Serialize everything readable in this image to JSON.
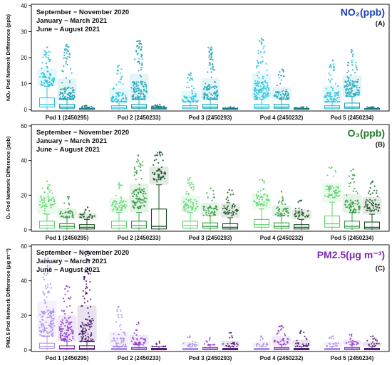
{
  "legend_lines": [
    "September − November 2020",
    "January − March 2021",
    "June − August 2021"
  ],
  "colors": {
    "panel_A": [
      "#29c4dc",
      "#1ba6b8",
      "#147a85"
    ],
    "panel_B": [
      "#58d66a",
      "#2c9b3c",
      "#164f22"
    ],
    "panel_C": [
      "#a88ce8",
      "#8a3cc8",
      "#4a1876"
    ],
    "title_A": "#1a3fc2",
    "title_B": "#1f7a2a",
    "title_C": "#7d2ab0"
  },
  "chart_data": [
    {
      "type": "box",
      "panel_letter": "(A)",
      "title": "NO₂(ppb)",
      "ylabel": "NO₂ Pod Network Difference (ppb)",
      "ylim": [
        0,
        40
      ],
      "yticks": [
        0,
        10,
        20,
        30,
        40
      ],
      "categories": [
        "Pod 1 (2450295)",
        "Pod 2 (2450233)",
        "Pod 3 (2450293)",
        "Pod 4 (2450232)",
        "Pod 5 (2450234)"
      ],
      "series": [
        {
          "name": "September − November 2020",
          "boxes": [
            {
              "q1": 1.0,
              "median": 2.0,
              "q3": 4.5,
              "whisker_low": 0,
              "whisker_high": 9,
              "outlier_max": 24,
              "outlier_center": 11.5
            },
            {
              "q1": 0.3,
              "median": 0.8,
              "q3": 1.5,
              "whisker_low": 0,
              "whisker_high": 3,
              "outlier_max": 17,
              "outlier_center": 4
            },
            {
              "q1": 0.3,
              "median": 0.8,
              "q3": 1.5,
              "whisker_low": 0,
              "whisker_high": 3,
              "outlier_max": 14,
              "outlier_center": 3.5
            },
            {
              "q1": 0.5,
              "median": 1.0,
              "q3": 2.0,
              "whisker_low": 0,
              "whisker_high": 4,
              "outlier_max": 27.5,
              "outlier_center": 7
            },
            {
              "q1": 0.3,
              "median": 0.8,
              "q3": 1.5,
              "whisker_low": 0,
              "whisker_high": 3,
              "outlier_max": 19,
              "outlier_center": 4
            }
          ]
        },
        {
          "name": "January − March 2021",
          "boxes": [
            {
              "q1": 0.5,
              "median": 1.0,
              "q3": 2.0,
              "whisker_low": 0,
              "whisker_high": 4,
              "outlier_max": 25,
              "outlier_center": 5
            },
            {
              "q1": 0.5,
              "median": 1.0,
              "q3": 2.0,
              "whisker_low": 0,
              "whisker_high": 4,
              "outlier_max": 26.5,
              "outlier_center": 7
            },
            {
              "q1": 0.5,
              "median": 1.0,
              "q3": 2.0,
              "whisker_low": 0,
              "whisker_high": 4,
              "outlier_max": 24,
              "outlier_center": 5.5
            },
            {
              "q1": 0.5,
              "median": 1.0,
              "q3": 2.0,
              "whisker_low": 0,
              "whisker_high": 4,
              "outlier_max": 15.5,
              "outlier_center": 5
            },
            {
              "q1": 0.5,
              "median": 1.0,
              "q3": 2.5,
              "whisker_low": 0,
              "whisker_high": 5,
              "outlier_max": 23,
              "outlier_center": 8
            }
          ]
        },
        {
          "name": "June − August 2021",
          "boxes": [
            {
              "q1": 0.1,
              "median": 0.2,
              "q3": 0.5,
              "whisker_low": 0,
              "whisker_high": 0.8,
              "outlier_max": 1.5,
              "outlier_center": 0.8
            },
            {
              "q1": 0.2,
              "median": 0.5,
              "q3": 0.8,
              "whisker_low": 0,
              "whisker_high": 1.2,
              "outlier_max": 2,
              "outlier_center": 1.2
            },
            {
              "q1": 0.1,
              "median": 0.2,
              "q3": 0.4,
              "whisker_low": 0,
              "whisker_high": 0.6,
              "outlier_max": 1.0,
              "outlier_center": 0.6
            },
            {
              "q1": 0.1,
              "median": 0.2,
              "q3": 0.4,
              "whisker_low": 0,
              "whisker_high": 0.6,
              "outlier_max": 1.0,
              "outlier_center": 0.6
            },
            {
              "q1": 0.1,
              "median": 0.2,
              "q3": 0.4,
              "whisker_low": 0,
              "whisker_high": 0.6,
              "outlier_max": 1.0,
              "outlier_center": 0.6
            }
          ]
        }
      ]
    },
    {
      "type": "box",
      "panel_letter": "(B)",
      "title": "O₃(ppb)",
      "ylabel": "O₃ Pod Network Difference (ppb)",
      "ylim": [
        0,
        60
      ],
      "yticks": [
        0,
        20,
        40,
        60
      ],
      "categories": [
        "Pod 1 (2450295)",
        "Pod 2 (2450233)",
        "Pod 3 (2450293)",
        "Pod 4 (2450232)",
        "Pod 5 (2450234)"
      ],
      "series": [
        {
          "name": "September − November 2020",
          "boxes": [
            {
              "q1": 1.0,
              "median": 2.5,
              "q3": 5.0,
              "whisker_low": 0,
              "whisker_high": 9,
              "outlier_max": 28,
              "outlier_center": 16
            },
            {
              "q1": 1.0,
              "median": 2.5,
              "q3": 5.0,
              "whisker_low": 0,
              "whisker_high": 10,
              "outlier_max": 27,
              "outlier_center": 14
            },
            {
              "q1": 1.0,
              "median": 2.5,
              "q3": 5.0,
              "whisker_low": 0,
              "whisker_high": 10,
              "outlier_max": 30,
              "outlier_center": 14
            },
            {
              "q1": 1.5,
              "median": 3.0,
              "q3": 6.0,
              "whisker_low": 0,
              "whisker_high": 12,
              "outlier_max": 29,
              "outlier_center": 17
            },
            {
              "q1": 1.5,
              "median": 3.5,
              "q3": 8.0,
              "whisker_low": 0,
              "whisker_high": 16,
              "outlier_max": 36,
              "outlier_center": 22
            }
          ]
        },
        {
          "name": "January − March 2021",
          "boxes": [
            {
              "q1": 1.0,
              "median": 2.0,
              "q3": 3.5,
              "whisker_low": 0,
              "whisker_high": 7,
              "outlier_max": 19,
              "outlier_center": 9
            },
            {
              "q1": 1.0,
              "median": 2.5,
              "q3": 5.0,
              "whisker_low": 0,
              "whisker_high": 10,
              "outlier_max": 43,
              "outlier_center": 18
            },
            {
              "q1": 1.0,
              "median": 2.0,
              "q3": 4.0,
              "whisker_low": 0,
              "whisker_high": 8,
              "outlier_max": 24,
              "outlier_center": 11
            },
            {
              "q1": 1.0,
              "median": 2.0,
              "q3": 4.0,
              "whisker_low": 0,
              "whisker_high": 8,
              "outlier_max": 22,
              "outlier_center": 10
            },
            {
              "q1": 1.0,
              "median": 2.0,
              "q3": 5.0,
              "whisker_low": 0,
              "whisker_high": 10,
              "outlier_max": 35,
              "outlier_center": 13
            }
          ]
        },
        {
          "name": "June − August 2021",
          "boxes": [
            {
              "q1": 0.5,
              "median": 1.5,
              "q3": 3.0,
              "whisker_low": 0,
              "whisker_high": 6,
              "outlier_max": 13,
              "outlier_center": 8
            },
            {
              "q1": 0.5,
              "median": 2.0,
              "q3": 12.0,
              "whisker_low": 0,
              "whisker_high": 26,
              "outlier_max": 45,
              "outlier_center": 32
            },
            {
              "q1": 0.5,
              "median": 1.5,
              "q3": 3.5,
              "whisker_low": 0,
              "whisker_high": 7,
              "outlier_max": 23,
              "outlier_center": 11
            },
            {
              "q1": 0.5,
              "median": 1.5,
              "q3": 3.0,
              "whisker_low": 0,
              "whisker_high": 6,
              "outlier_max": 17,
              "outlier_center": 9
            },
            {
              "q1": 0.5,
              "median": 1.5,
              "q3": 4.5,
              "whisker_low": 0,
              "whisker_high": 9,
              "outlier_max": 28,
              "outlier_center": 14
            }
          ]
        }
      ]
    },
    {
      "type": "box",
      "panel_letter": "(C)",
      "title": "PM2.5(μg m⁻³)",
      "ylabel": "PM2.5 Pod Network Difference (μg m⁻³)",
      "ylim": [
        0,
        60
      ],
      "yticks": [
        0,
        20,
        40,
        60
      ],
      "categories": [
        "Pod 1 (2450295)",
        "Pod 2 (2450233)",
        "Pod 3 (2450293)",
        "Pod 4 (2450232)",
        "Pod 5 (2450234)"
      ],
      "series": [
        {
          "name": "September − November 2020",
          "boxes": [
            {
              "q1": 1.0,
              "median": 2.0,
              "q3": 4.0,
              "whisker_low": 0,
              "whisker_high": 8,
              "outlier_max": 53,
              "outlier_center": 15
            },
            {
              "q1": 0.2,
              "median": 0.5,
              "q3": 1.0,
              "whisker_low": 0,
              "whisker_high": 2,
              "outlier_max": 25,
              "outlier_center": 3
            },
            {
              "q1": 0.2,
              "median": 0.5,
              "q3": 1.0,
              "whisker_low": 0,
              "whisker_high": 2,
              "outlier_max": 8,
              "outlier_center": 3
            },
            {
              "q1": 0.2,
              "median": 0.5,
              "q3": 1.0,
              "whisker_low": 0,
              "whisker_high": 2,
              "outlier_max": 8,
              "outlier_center": 3
            },
            {
              "q1": 0.2,
              "median": 0.5,
              "q3": 1.0,
              "whisker_low": 0,
              "whisker_high": 2,
              "outlier_max": 8,
              "outlier_center": 3
            }
          ]
        },
        {
          "name": "January − March 2021",
          "boxes": [
            {
              "q1": 0.5,
              "median": 1.0,
              "q3": 2.5,
              "whisker_low": 0,
              "whisker_high": 5,
              "outlier_max": 37,
              "outlier_center": 11
            },
            {
              "q1": 0.3,
              "median": 0.7,
              "q3": 1.5,
              "whisker_low": 0,
              "whisker_high": 3,
              "outlier_max": 16,
              "outlier_center": 5
            },
            {
              "q1": 0.3,
              "median": 0.7,
              "q3": 1.5,
              "whisker_low": 0,
              "whisker_high": 3,
              "outlier_max": 7,
              "outlier_center": 3
            },
            {
              "q1": 0.3,
              "median": 0.7,
              "q3": 1.5,
              "whisker_low": 0,
              "whisker_high": 3,
              "outlier_max": 14,
              "outlier_center": 5
            },
            {
              "q1": 0.3,
              "median": 0.7,
              "q3": 1.5,
              "whisker_low": 0,
              "whisker_high": 3,
              "outlier_max": 9,
              "outlier_center": 4
            }
          ]
        },
        {
          "name": "June − August 2021",
          "boxes": [
            {
              "q1": 0.3,
              "median": 1.0,
              "q3": 2.5,
              "whisker_low": 0,
              "whisker_high": 5,
              "outlier_max": 57,
              "outlier_center": 9
            },
            {
              "q1": 0.2,
              "median": 0.5,
              "q3": 1.0,
              "whisker_low": 0,
              "whisker_high": 2,
              "outlier_max": 5,
              "outlier_center": 2
            },
            {
              "q1": 0.2,
              "median": 0.5,
              "q3": 1.0,
              "whisker_low": 0,
              "whisker_high": 2,
              "outlier_max": 10,
              "outlier_center": 3
            },
            {
              "q1": 0.2,
              "median": 0.5,
              "q3": 1.0,
              "whisker_low": 0,
              "whisker_high": 2,
              "outlier_max": 11,
              "outlier_center": 3
            },
            {
              "q1": 0.2,
              "median": 0.5,
              "q3": 1.0,
              "whisker_low": 0,
              "whisker_high": 2,
              "outlier_max": 8,
              "outlier_center": 3
            }
          ]
        }
      ]
    }
  ]
}
